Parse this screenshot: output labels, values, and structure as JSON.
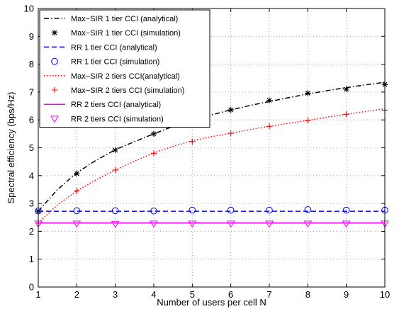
{
  "chart_data": {
    "type": "line",
    "xlabel": "Number of users per cell N",
    "ylabel": "Spectral efficiency (bps/Hz)",
    "xlim": [
      1,
      10
    ],
    "ylim": [
      0,
      10
    ],
    "xticks": [
      1,
      2,
      3,
      4,
      5,
      6,
      7,
      8,
      9,
      10
    ],
    "yticks": [
      0,
      1,
      2,
      3,
      4,
      5,
      6,
      7,
      8,
      9,
      10
    ],
    "grid": true,
    "legend_position": "top-left",
    "series": [
      {
        "name": "Max−SIR 1 tier CCI (analytical)",
        "kind": "line",
        "color": "#000000",
        "dash": "dashdot",
        "x": [
          1,
          1.5,
          2,
          2.5,
          3,
          3.5,
          4,
          4.5,
          5,
          5.5,
          6,
          6.5,
          7,
          7.5,
          8,
          8.5,
          9,
          9.5,
          10
        ],
        "y": [
          2.72,
          3.5,
          4.1,
          4.55,
          4.93,
          5.22,
          5.5,
          5.77,
          6.0,
          6.18,
          6.36,
          6.52,
          6.66,
          6.8,
          6.93,
          7.05,
          7.16,
          7.26,
          7.35
        ]
      },
      {
        "name": "Max−SIR 1 tier CCI (simulation)",
        "kind": "marker",
        "marker": "asterisk",
        "color": "#000000",
        "x": [
          1,
          2,
          3,
          4,
          5,
          6,
          7,
          8,
          9,
          10
        ],
        "y": [
          2.72,
          4.07,
          4.92,
          5.5,
          6.02,
          6.36,
          6.7,
          6.96,
          7.1,
          7.27
        ]
      },
      {
        "name": "RR  1 tier CCI (analytical)",
        "kind": "line",
        "color": "#0000ff",
        "dash": "dashed",
        "x": [
          1,
          10
        ],
        "y": [
          2.72,
          2.72
        ]
      },
      {
        "name": "RR 1 tier CCI (simulation)",
        "kind": "marker",
        "marker": "circle",
        "color": "#0000ff",
        "x": [
          1,
          2,
          3,
          4,
          5,
          6,
          7,
          8,
          9,
          10
        ],
        "y": [
          2.73,
          2.74,
          2.74,
          2.73,
          2.76,
          2.76,
          2.76,
          2.78,
          2.76,
          2.76
        ]
      },
      {
        "name": "Max−SIR 2 tiers CCI(analytical)",
        "kind": "line",
        "color": "#ff0000",
        "dash": "dotted",
        "x": [
          1,
          1.5,
          2,
          2.5,
          3,
          3.5,
          4,
          4.5,
          5,
          5.5,
          6,
          6.5,
          7,
          7.5,
          8,
          8.5,
          9,
          9.5,
          10
        ],
        "y": [
          2.3,
          2.95,
          3.45,
          3.85,
          4.2,
          4.52,
          4.82,
          5.05,
          5.25,
          5.4,
          5.52,
          5.65,
          5.77,
          5.88,
          5.98,
          6.1,
          6.2,
          6.3,
          6.4
        ]
      },
      {
        "name": "Max−SIR 2 tiers CCI (simulation)",
        "kind": "marker",
        "marker": "plus",
        "color": "#ff0000",
        "x": [
          1,
          2,
          3,
          4,
          5,
          6,
          7,
          8,
          9,
          10
        ],
        "y": [
          2.3,
          3.45,
          4.2,
          4.8,
          5.22,
          5.52,
          5.77,
          5.98,
          6.2,
          6.35
        ]
      },
      {
        "name": "RR 2 tiers CCI (analytical)",
        "kind": "line",
        "color": "#ff00ff",
        "dash": "solid",
        "x": [
          1,
          10
        ],
        "y": [
          2.3,
          2.3
        ]
      },
      {
        "name": "RR 2 tiers CCI (simulation)",
        "kind": "marker",
        "marker": "triangle-down",
        "color": "#ff00ff",
        "x": [
          1,
          2,
          3,
          4,
          5,
          6,
          7,
          8,
          9,
          10
        ],
        "y": [
          2.28,
          2.28,
          2.27,
          2.28,
          2.28,
          2.28,
          2.28,
          2.28,
          2.28,
          2.28
        ]
      }
    ]
  }
}
